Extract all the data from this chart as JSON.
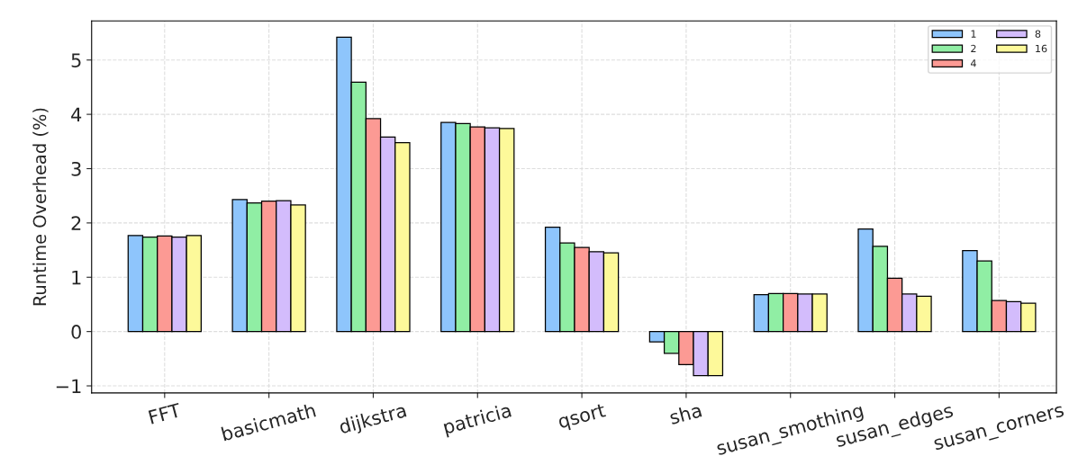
{
  "chart_data": {
    "type": "bar",
    "ylabel": "Runtime Overhead (%)",
    "categories": [
      "FFT",
      "basicmath",
      "dijkstra",
      "patricia",
      "qsort",
      "sha",
      "susan_smothing",
      "susan_edges",
      "susan_corners"
    ],
    "series": [
      {
        "name": "1",
        "color": "#8ec5fc",
        "values": [
          1.77,
          2.43,
          5.42,
          3.85,
          1.92,
          -0.19,
          0.68,
          1.89,
          1.49
        ]
      },
      {
        "name": "2",
        "color": "#90eea4",
        "values": [
          1.74,
          2.37,
          4.59,
          3.83,
          1.63,
          -0.4,
          0.7,
          1.57,
          1.3
        ]
      },
      {
        "name": "4",
        "color": "#fc9a94",
        "values": [
          1.76,
          2.4,
          3.92,
          3.77,
          1.55,
          -0.61,
          0.7,
          0.98,
          0.57
        ]
      },
      {
        "name": "8",
        "color": "#d3bcfc",
        "values": [
          1.74,
          2.41,
          3.58,
          3.75,
          1.47,
          -0.81,
          0.69,
          0.69,
          0.55
        ]
      },
      {
        "name": "16",
        "color": "#fdf99a",
        "values": [
          1.77,
          2.33,
          3.48,
          3.74,
          1.45,
          -0.81,
          0.69,
          0.65,
          0.52
        ]
      }
    ],
    "ylim": [
      -1.13,
      5.72
    ],
    "yticks": [
      {
        "value": -1,
        "label": "−1"
      },
      0,
      1,
      2,
      3,
      4,
      5
    ],
    "grid": true,
    "legend": "top right"
  }
}
